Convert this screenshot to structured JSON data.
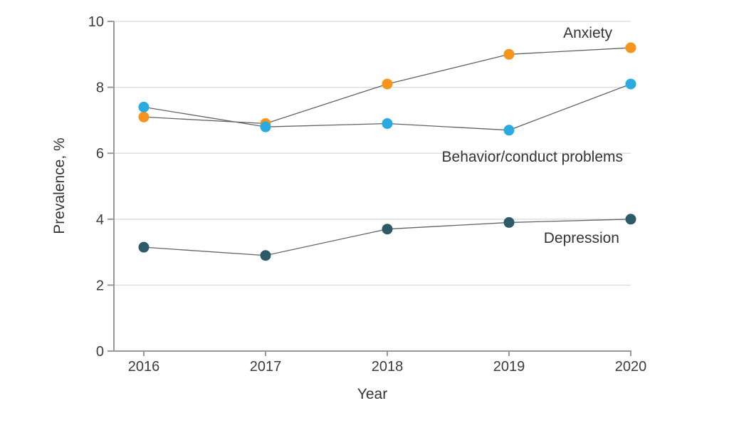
{
  "chart_data": {
    "type": "line",
    "title": "",
    "xlabel": "Year",
    "ylabel": "Prevalence, %",
    "x": [
      "2016",
      "2017",
      "2018",
      "2019",
      "2020"
    ],
    "ylim": [
      0,
      10
    ],
    "yticks": [
      0,
      2,
      4,
      6,
      8,
      10
    ],
    "grid": true,
    "legend_position": "inline-annotations-right",
    "series": [
      {
        "name": "Anxiety",
        "values": [
          7.1,
          6.9,
          8.1,
          9.0,
          9.2
        ],
        "color": "#F7941E",
        "marker": "circle"
      },
      {
        "name": "Behavior/conduct problems",
        "values": [
          7.4,
          6.8,
          6.9,
          6.7,
          8.1
        ],
        "color": "#29ABE2",
        "marker": "circle"
      },
      {
        "name": "Depression",
        "values": [
          3.15,
          2.9,
          3.7,
          3.9,
          4.0
        ],
        "color": "#2D5A68",
        "marker": "circle"
      }
    ],
    "colors": {
      "grid": "#DADBDC",
      "axis": "#97999C",
      "connector_line": "#626366",
      "text": "#3C3B3E",
      "background": "#FFFFFF"
    }
  }
}
